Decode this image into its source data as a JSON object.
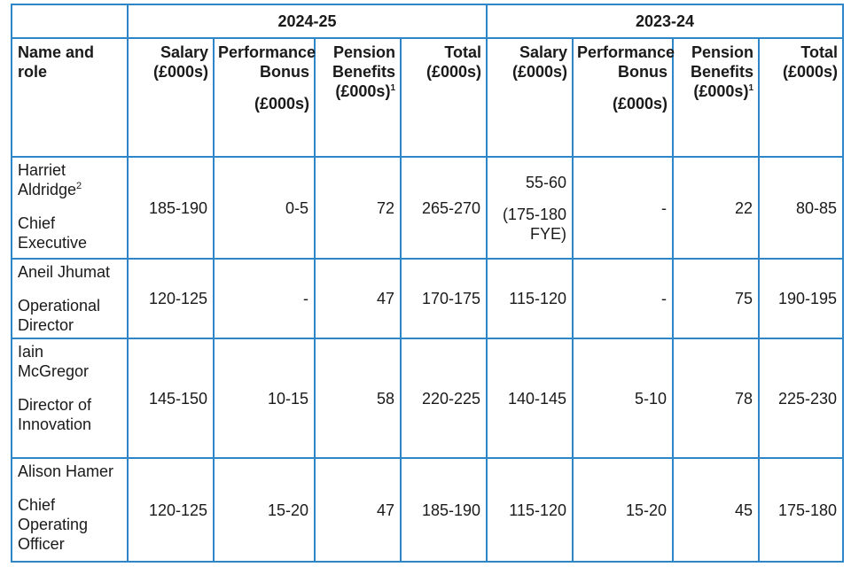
{
  "table": {
    "years": [
      "2024-25",
      "2023-24"
    ],
    "header": {
      "name_role": [
        "Name and",
        "role"
      ],
      "salary": [
        "Salary",
        "(£000s)"
      ],
      "bonus": [
        "Performance",
        "Bonus",
        "(£000s)"
      ],
      "pension": [
        "Pension",
        "Benefits",
        "(£000s)",
        "1"
      ],
      "total": [
        "Total",
        "(£000s)"
      ]
    },
    "rows": [
      {
        "name": [
          "Harriet",
          "Aldridge"
        ],
        "name_note": "2",
        "role": [
          "Chief",
          "Executive"
        ],
        "y2024": {
          "salary": "185-190",
          "bonus": "0-5",
          "pension": "72",
          "total": "265-270"
        },
        "y2023": {
          "salary": "55-60",
          "salary_note": [
            "(175-180",
            "FYE)"
          ],
          "bonus": "-",
          "pension": "22",
          "total": "80-85"
        }
      },
      {
        "name": [
          "Aneil Jhumat"
        ],
        "role": [
          "Operational",
          "Director"
        ],
        "y2024": {
          "salary": "120-125",
          "bonus": "-",
          "pension": "47",
          "total": "170-175"
        },
        "y2023": {
          "salary": "115-120",
          "bonus": "-",
          "pension": "75",
          "total": "190-195"
        }
      },
      {
        "name": [
          "Iain",
          "McGregor"
        ],
        "role": [
          "Director of",
          "Innovation"
        ],
        "y2024": {
          "salary": "145-150",
          "bonus": "10-15",
          "pension": "58",
          "total": "220-225"
        },
        "y2023": {
          "salary": "140-145",
          "bonus": "5-10",
          "pension": "78",
          "total": "225-230"
        }
      },
      {
        "name": [
          "Alison Hamer"
        ],
        "role": [
          "Chief",
          "Operating",
          "Officer"
        ],
        "y2024": {
          "salary": "120-125",
          "bonus": "15-20",
          "pension": "47",
          "total": "185-190"
        },
        "y2023": {
          "salary": "115-120",
          "bonus": "15-20",
          "pension": "45",
          "total": "175-180"
        }
      }
    ]
  }
}
